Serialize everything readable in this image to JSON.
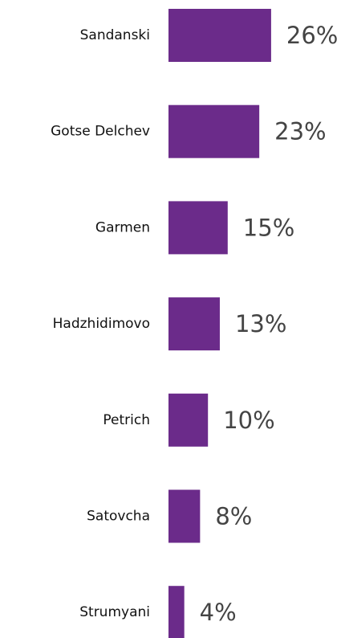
{
  "chart_data": {
    "type": "bar",
    "orientation": "horizontal",
    "categories": [
      "Sandanski",
      "Gotse Delchev",
      "Garmen",
      "Hadzhidimovo",
      "Petrich",
      "Satovcha",
      "Strumyani"
    ],
    "values": [
      26,
      23,
      15,
      13,
      10,
      8,
      4
    ],
    "value_labels": [
      "26%",
      "23%",
      "15%",
      "13%",
      "10%",
      "8%",
      "4%"
    ],
    "color": "#6b2b8a"
  }
}
